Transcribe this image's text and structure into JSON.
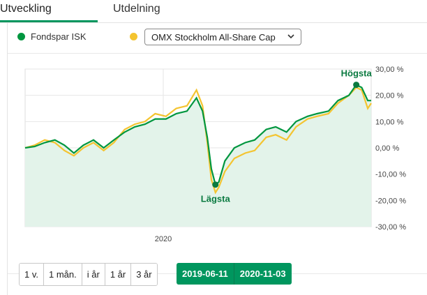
{
  "tabs": [
    {
      "label": "Utveckling",
      "active": true
    },
    {
      "label": "Utdelning",
      "active": false
    }
  ],
  "legend": {
    "fund": {
      "label": "Fondspar ISK",
      "color": "#00963f"
    },
    "index": {
      "label": "OMX Stockholm All-Share Cap",
      "color": "#f4c430"
    }
  },
  "chart": {
    "y_ticks": [
      "30,00 %",
      "20,00 %",
      "10,00 %",
      "0,00 %",
      "-10,00 %",
      "-20,00 %",
      "-30,00 %"
    ],
    "x_label": "2020",
    "high_label": "Högsta",
    "low_label": "Lägsta"
  },
  "chart_data": {
    "type": "line",
    "ylim": [
      -30,
      30
    ],
    "xlim": [
      "2019-06-11",
      "2020-11-03"
    ],
    "series": [
      {
        "name": "Fondspar ISK",
        "color": "#00963f",
        "points": [
          [
            "2019-06-11",
            0
          ],
          [
            "2019-06-25",
            0.5
          ],
          [
            "2019-07-10",
            2
          ],
          [
            "2019-07-25",
            3
          ],
          [
            "2019-08-08",
            1
          ],
          [
            "2019-08-22",
            -2
          ],
          [
            "2019-09-05",
            1
          ],
          [
            "2019-09-20",
            3
          ],
          [
            "2019-10-05",
            0
          ],
          [
            "2019-10-20",
            3
          ],
          [
            "2019-11-05",
            6
          ],
          [
            "2019-11-20",
            8
          ],
          [
            "2019-12-05",
            9
          ],
          [
            "2019-12-20",
            11
          ],
          [
            "2020-01-05",
            11
          ],
          [
            "2020-01-20",
            13
          ],
          [
            "2020-02-05",
            14
          ],
          [
            "2020-02-19",
            19
          ],
          [
            "2020-02-28",
            14
          ],
          [
            "2020-03-06",
            4
          ],
          [
            "2020-03-12",
            -8
          ],
          [
            "2020-03-18",
            -14
          ],
          [
            "2020-03-23",
            -13
          ],
          [
            "2020-04-01",
            -5
          ],
          [
            "2020-04-15",
            0
          ],
          [
            "2020-05-01",
            2
          ],
          [
            "2020-05-15",
            3
          ],
          [
            "2020-06-01",
            7
          ],
          [
            "2020-06-15",
            8
          ],
          [
            "2020-07-01",
            6
          ],
          [
            "2020-07-15",
            10
          ],
          [
            "2020-08-01",
            12
          ],
          [
            "2020-08-15",
            13
          ],
          [
            "2020-09-01",
            14
          ],
          [
            "2020-09-15",
            18
          ],
          [
            "2020-10-01",
            20
          ],
          [
            "2020-10-12",
            24
          ],
          [
            "2020-10-20",
            23
          ],
          [
            "2020-10-29",
            18
          ],
          [
            "2020-11-03",
            18
          ]
        ]
      },
      {
        "name": "OMX Stockholm All-Share Cap",
        "color": "#f4c430",
        "points": [
          [
            "2019-06-11",
            0
          ],
          [
            "2019-06-25",
            1
          ],
          [
            "2019-07-10",
            3
          ],
          [
            "2019-07-25",
            2
          ],
          [
            "2019-08-08",
            -1
          ],
          [
            "2019-08-22",
            -3
          ],
          [
            "2019-09-05",
            0
          ],
          [
            "2019-09-20",
            2
          ],
          [
            "2019-10-05",
            -1
          ],
          [
            "2019-10-20",
            2
          ],
          [
            "2019-11-05",
            7
          ],
          [
            "2019-11-20",
            9
          ],
          [
            "2019-12-05",
            10
          ],
          [
            "2019-12-20",
            13
          ],
          [
            "2020-01-05",
            12
          ],
          [
            "2020-01-20",
            15
          ],
          [
            "2020-02-05",
            16
          ],
          [
            "2020-02-19",
            22
          ],
          [
            "2020-02-28",
            16
          ],
          [
            "2020-03-06",
            2
          ],
          [
            "2020-03-12",
            -12
          ],
          [
            "2020-03-18",
            -17
          ],
          [
            "2020-03-23",
            -15
          ],
          [
            "2020-04-01",
            -9
          ],
          [
            "2020-04-15",
            -4
          ],
          [
            "2020-05-01",
            -2
          ],
          [
            "2020-05-15",
            -1
          ],
          [
            "2020-06-01",
            4
          ],
          [
            "2020-06-15",
            5
          ],
          [
            "2020-07-01",
            3
          ],
          [
            "2020-07-15",
            8
          ],
          [
            "2020-08-01",
            11
          ],
          [
            "2020-08-15",
            12
          ],
          [
            "2020-09-01",
            13
          ],
          [
            "2020-09-15",
            17
          ],
          [
            "2020-10-01",
            20
          ],
          [
            "2020-10-12",
            23
          ],
          [
            "2020-10-20",
            22
          ],
          [
            "2020-10-29",
            15
          ],
          [
            "2020-11-03",
            17
          ]
        ]
      }
    ],
    "high_point": [
      "2020-10-12",
      24
    ],
    "low_point": [
      "2020-03-18",
      -14
    ]
  },
  "ranges": [
    "1 v.",
    "1 mån.",
    "i år",
    "1 år",
    "3 år"
  ],
  "date_range": {
    "from": "2019-06-11",
    "to": "2020-11-03"
  }
}
